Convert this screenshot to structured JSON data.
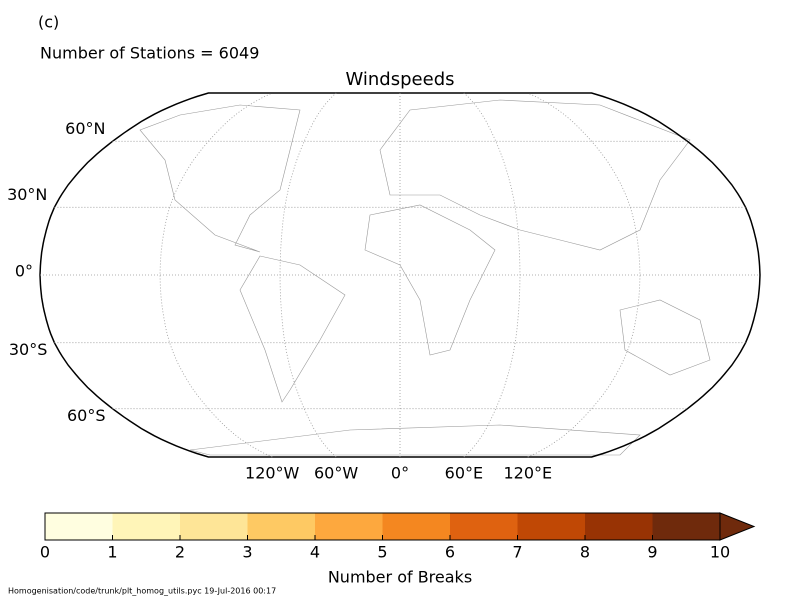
{
  "panel_label": "(c)",
  "subtitle": "Number of Stations = 6049",
  "title": "Windspeeds",
  "map": {
    "projection": "robinson",
    "lat_ticks": [
      {
        "value": 60,
        "label": "60°N"
      },
      {
        "value": 30,
        "label": "30°N"
      },
      {
        "value": 0,
        "label": "0°"
      },
      {
        "value": -30,
        "label": "30°S"
      },
      {
        "value": -60,
        "label": "60°S"
      }
    ],
    "lon_ticks": [
      {
        "value": -120,
        "label": "120°W"
      },
      {
        "value": -60,
        "label": "60°W"
      },
      {
        "value": 0,
        "label": "0°"
      },
      {
        "value": 60,
        "label": "60°E"
      },
      {
        "value": 120,
        "label": "120°E"
      }
    ]
  },
  "colorbar": {
    "label": "Number of Breaks",
    "ticks": [
      0,
      1,
      2,
      3,
      4,
      5,
      6,
      7,
      8,
      9,
      10
    ],
    "colors": [
      "#fffee0",
      "#fff5b8",
      "#fee597",
      "#fec963",
      "#fda83e",
      "#f48720",
      "#df6210",
      "#c04805",
      "#983304",
      "#6f2a0c"
    ],
    "extend": "max"
  },
  "footer": "Homogenisation/code/trunk/plt_homog_utils.pyc   19-Jul-2016 00:17"
}
